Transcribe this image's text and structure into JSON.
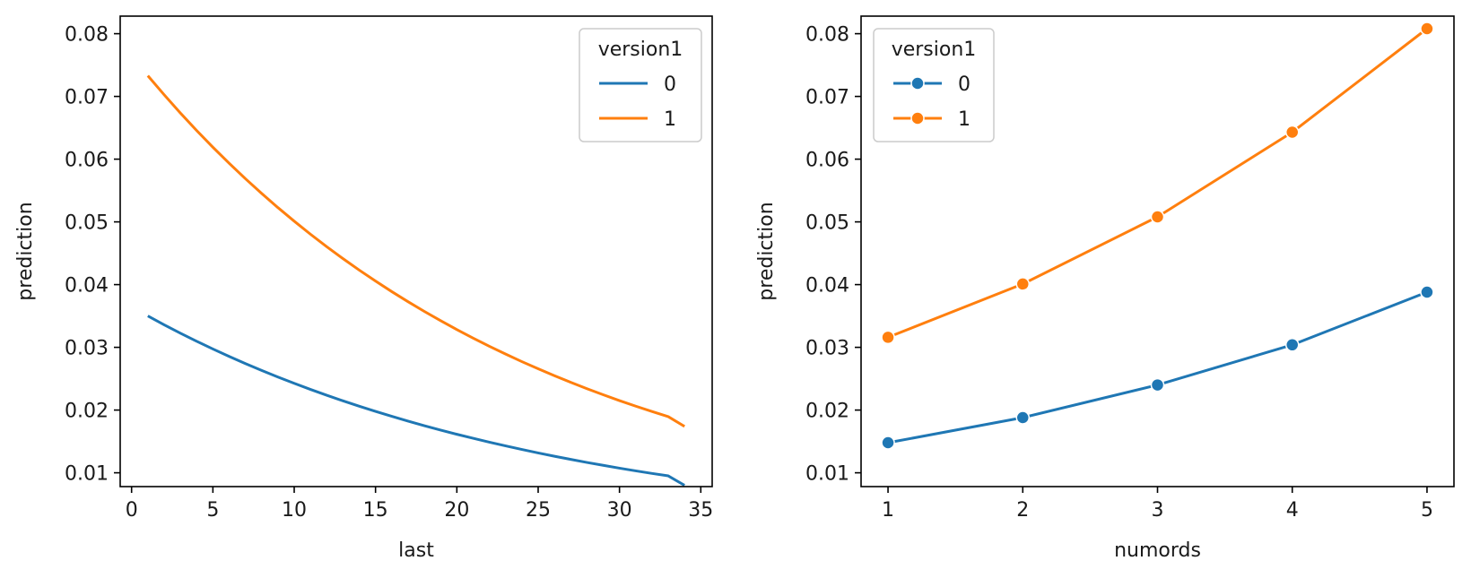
{
  "chart_data": [
    {
      "type": "line",
      "xlabel": "last",
      "ylabel": "prediction",
      "xlim": [
        -0.7,
        35.7
      ],
      "ylim": [
        0.0078,
        0.0828
      ],
      "xticks": [
        0,
        5,
        10,
        15,
        20,
        25,
        30,
        35
      ],
      "yticks": [
        0.01,
        0.02,
        0.03,
        0.04,
        0.05,
        0.06,
        0.07,
        0.08
      ],
      "ytick_labels": [
        "0.01",
        "0.02",
        "0.03",
        "0.04",
        "0.05",
        "0.06",
        "0.07",
        "0.08"
      ],
      "markers": false,
      "legend": {
        "title": "version1",
        "placement": "top-right"
      },
      "x": [
        1,
        2,
        3,
        4,
        5,
        6,
        7,
        8,
        9,
        10,
        11,
        12,
        13,
        14,
        15,
        16,
        17,
        18,
        19,
        20,
        21,
        22,
        23,
        24,
        25,
        26,
        27,
        28,
        29,
        30,
        31,
        32,
        33,
        34
      ],
      "series": [
        {
          "name": "0",
          "color": "#1f77b4",
          "values": [
            0.035,
            0.0336,
            0.03226,
            0.03097,
            0.02974,
            0.02855,
            0.02741,
            0.02632,
            0.02527,
            0.02426,
            0.02329,
            0.02236,
            0.02147,
            0.02061,
            0.01979,
            0.019,
            0.01824,
            0.01751,
            0.01681,
            0.01614,
            0.0155,
            0.01488,
            0.01429,
            0.01372,
            0.01317,
            0.01264,
            0.01214,
            0.01165,
            0.01119,
            0.01074,
            0.01031,
            0.0099,
            0.00951,
            0.008
          ]
        },
        {
          "name": "1",
          "color": "#ff7f0e",
          "values": [
            0.0733,
            0.07027,
            0.06736,
            0.06457,
            0.0619,
            0.05934,
            0.05688,
            0.05453,
            0.05227,
            0.05011,
            0.04803,
            0.04604,
            0.04414,
            0.04231,
            0.04056,
            0.03888,
            0.03727,
            0.03573,
            0.03425,
            0.03283,
            0.03147,
            0.03017,
            0.02892,
            0.02772,
            0.02658,
            0.02548,
            0.02442,
            0.02341,
            0.02244,
            0.02151,
            0.02062,
            0.01977,
            0.01895,
            0.0174
          ]
        }
      ]
    },
    {
      "type": "line",
      "xlabel": "numords",
      "ylabel": "prediction",
      "xlim": [
        0.8,
        5.2
      ],
      "ylim": [
        0.0078,
        0.0828
      ],
      "xticks": [
        1,
        2,
        3,
        4,
        5
      ],
      "yticks": [
        0.01,
        0.02,
        0.03,
        0.04,
        0.05,
        0.06,
        0.07,
        0.08
      ],
      "ytick_labels": [
        "0.01",
        "0.02",
        "0.03",
        "0.04",
        "0.05",
        "0.06",
        "0.07",
        "0.08"
      ],
      "markers": true,
      "legend": {
        "title": "version1",
        "placement": "top-left"
      },
      "x": [
        1,
        2,
        3,
        4,
        5
      ],
      "series": [
        {
          "name": "0",
          "color": "#1f77b4",
          "values": [
            0.0148,
            0.0188,
            0.024,
            0.0304,
            0.0388
          ]
        },
        {
          "name": "1",
          "color": "#ff7f0e",
          "values": [
            0.0316,
            0.0401,
            0.0508,
            0.0643,
            0.0808
          ]
        }
      ]
    }
  ]
}
